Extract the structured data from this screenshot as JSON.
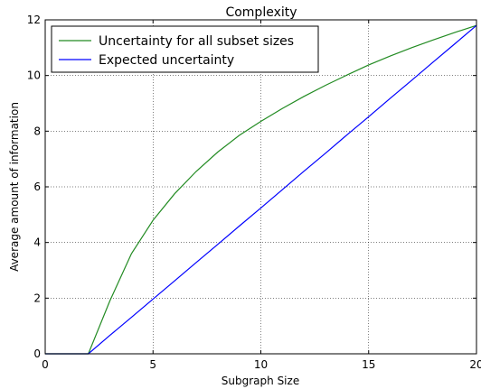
{
  "chart_data": {
    "type": "line",
    "title": "Complexity",
    "xlabel": "Subgraph Size",
    "ylabel": "Average amount of information",
    "xlim": [
      0,
      20
    ],
    "ylim": [
      0,
      12
    ],
    "xticks": [
      0,
      5,
      10,
      15,
      20
    ],
    "yticks": [
      0,
      2,
      4,
      6,
      8,
      10,
      12
    ],
    "grid": true,
    "legend_position": "top-left",
    "x": [
      0,
      1,
      2,
      3,
      4,
      5,
      6,
      7,
      8,
      9,
      10,
      11,
      12,
      13,
      14,
      15,
      16,
      17,
      18,
      19,
      20
    ],
    "series": [
      {
        "name": "Uncertainty for all subset sizes",
        "color": "#228b22",
        "values": [
          0,
          0,
          0,
          1.9,
          3.6,
          4.8,
          5.75,
          6.55,
          7.25,
          7.85,
          8.35,
          8.82,
          9.25,
          9.65,
          10.02,
          10.38,
          10.7,
          11.0,
          11.28,
          11.55,
          11.8
        ]
      },
      {
        "name": "Expected uncertainty",
        "color": "#0000ff",
        "values": [
          0,
          0,
          0,
          0.66,
          1.31,
          1.97,
          2.62,
          3.28,
          3.93,
          4.59,
          5.24,
          5.9,
          6.56,
          7.21,
          7.87,
          8.52,
          9.18,
          9.83,
          10.49,
          11.14,
          11.8
        ]
      }
    ]
  }
}
